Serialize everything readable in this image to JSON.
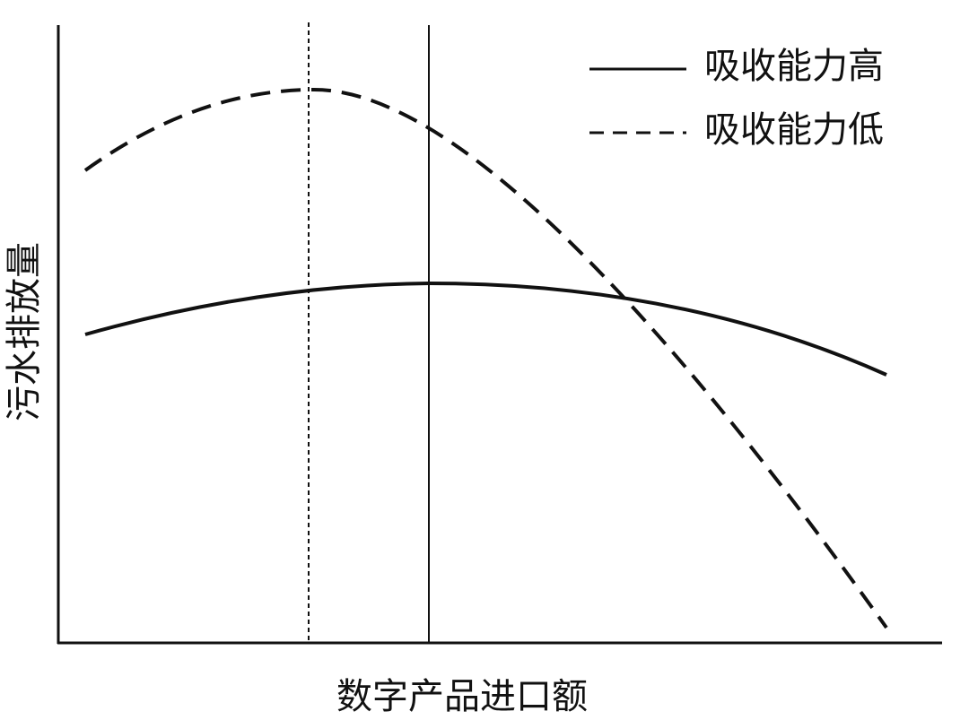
{
  "axes": {
    "y_label": "污水排放量",
    "x_label": "数字产品进口额"
  },
  "legend": [
    {
      "label": "吸收能力高"
    },
    {
      "label": "吸收能力低"
    }
  ]
}
